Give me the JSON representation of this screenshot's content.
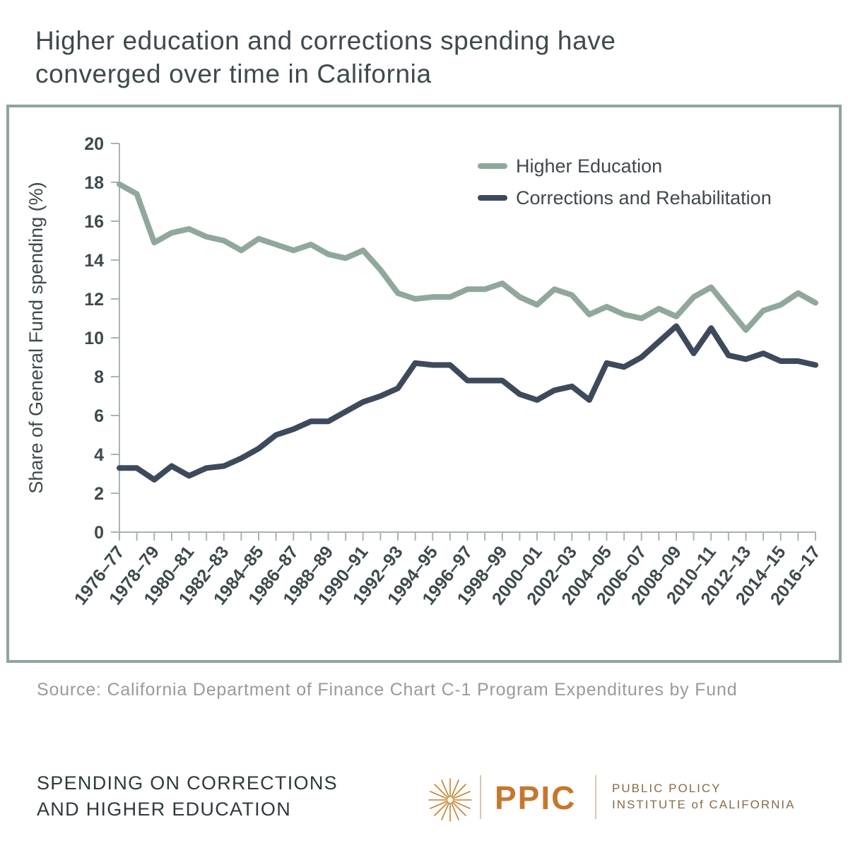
{
  "title": {
    "line1": "Higher education and corrections spending have",
    "line2": "converged over time in California"
  },
  "source": "Source: California Department of Finance Chart C-1 Program Expenditures by Fund",
  "footer": {
    "line1": "SPENDING ON CORRECTIONS",
    "line2": "AND HIGHER EDUCATION"
  },
  "logo": {
    "acronym": "PPIC",
    "name_line1": "PUBLIC POLICY",
    "name_line2": "INSTITUTE of CALIFORNIA"
  },
  "colors": {
    "higher_education": "#8fa89b",
    "corrections": "#3d4a5c",
    "frame": "#8fa69a",
    "axis_text": "#3e4a4d"
  },
  "chart_data": {
    "type": "line",
    "title": "",
    "xlabel": "",
    "ylabel": "Share of General Fund spending (%)",
    "ylim": [
      0,
      20
    ],
    "yticks": [
      0,
      2,
      4,
      6,
      8,
      10,
      12,
      14,
      16,
      18,
      20
    ],
    "legend_position": "top-right",
    "x": [
      "1976–77",
      "1977–78",
      "1978–79",
      "1979–80",
      "1980–81",
      "1981–82",
      "1982–83",
      "1983–84",
      "1984–85",
      "1985–86",
      "1986–87",
      "1987–88",
      "1988–89",
      "1989–90",
      "1990–91",
      "1991–92",
      "1992–93",
      "1993–94",
      "1994–95",
      "1995–96",
      "1996–97",
      "1997–98",
      "1998–99",
      "1999–00",
      "2000–01",
      "2001–02",
      "2002–03",
      "2003–04",
      "2004–05",
      "2005–06",
      "2006–07",
      "2007–08",
      "2008–09",
      "2009–10",
      "2010–11",
      "2011–12",
      "2012–13",
      "2013–14",
      "2014–15",
      "2015–16",
      "2016–17"
    ],
    "xtick_labels": [
      "1976–77",
      "1978–79",
      "1980–81",
      "1982–83",
      "1984–85",
      "1986–87",
      "1988–89",
      "1990–91",
      "1992–93",
      "1994–95",
      "1996–97",
      "1998–99",
      "2000–01",
      "2002–03",
      "2004–05",
      "2006–07",
      "2008–09",
      "2010–11",
      "2012–13",
      "2014–15",
      "2016–17"
    ],
    "series": [
      {
        "name": "Higher Education",
        "values": [
          17.9,
          17.4,
          14.9,
          15.4,
          15.6,
          15.2,
          15.0,
          14.5,
          15.1,
          14.8,
          14.5,
          14.8,
          14.3,
          14.1,
          14.5,
          13.5,
          12.3,
          12.0,
          12.1,
          12.1,
          12.5,
          12.5,
          12.8,
          12.1,
          11.7,
          12.5,
          12.2,
          11.2,
          11.6,
          11.2,
          11.0,
          11.5,
          11.1,
          12.1,
          12.6,
          11.5,
          10.4,
          11.4,
          11.7,
          12.3,
          11.8
        ]
      },
      {
        "name": "Corrections and Rehabilitation",
        "values": [
          3.3,
          3.3,
          2.7,
          3.4,
          2.9,
          3.3,
          3.4,
          3.8,
          4.3,
          5.0,
          5.3,
          5.7,
          5.7,
          6.2,
          6.7,
          7.0,
          7.4,
          8.7,
          8.6,
          8.6,
          7.8,
          7.8,
          7.8,
          7.1,
          6.8,
          7.3,
          7.5,
          6.8,
          8.7,
          8.5,
          9.0,
          9.8,
          10.6,
          9.2,
          10.5,
          9.1,
          8.9,
          9.2,
          8.8,
          8.8,
          8.6
        ]
      }
    ]
  }
}
